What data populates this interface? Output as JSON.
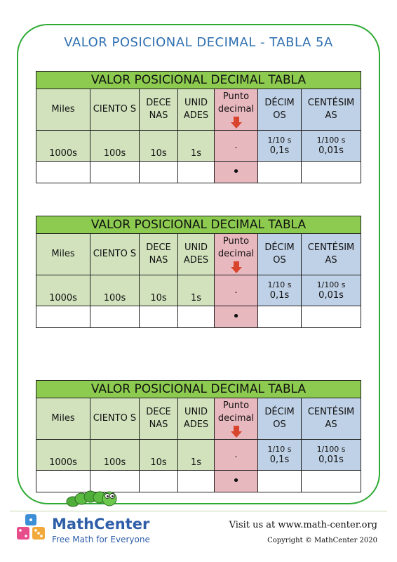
{
  "page_title": "VALOR POSICIONAL DECIMAL - TABLA 5A",
  "tables": [
    {
      "title": "VALOR POSICIONAL DECIMAL TABLA",
      "headers": [
        "Miles",
        "CIENTO S",
        "DECE NAS",
        "UNID ADES",
        "Punto decimal",
        "DÉCIM OS",
        "CENTÉSIM AS"
      ],
      "values": [
        "1000s",
        "100s",
        "10s",
        "1s",
        ".",
        "0,1s",
        "0,01s"
      ],
      "fractions": [
        "1/10 s",
        "1/100 s"
      ],
      "empty_dot": "•"
    },
    {
      "title": "VALOR POSICIONAL DECIMAL TABLA",
      "headers": [
        "Miles",
        "CIENTO S",
        "DECE NAS",
        "UNID ADES",
        "Punto decimal",
        "DÉCIM OS",
        "CENTÉSIM AS"
      ],
      "values": [
        "1000s",
        "100s",
        "10s",
        "1s",
        ".",
        "0,1s",
        "0,01s"
      ],
      "fractions": [
        "1/10 s",
        "1/100 s"
      ],
      "empty_dot": "•"
    },
    {
      "title": "VALOR POSICIONAL DECIMAL TABLA",
      "headers": [
        "Miles",
        "CIENTO S",
        "DECE NAS",
        "UNID ADES",
        "Punto decimal",
        "DÉCIM OS",
        "CENTÉSIM AS"
      ],
      "values": [
        "1000s",
        "100s",
        "10s",
        "1s",
        ".",
        "0,1s",
        "0,01s"
      ],
      "fractions": [
        "1/10 s",
        "1/100 s"
      ],
      "empty_dot": "•"
    }
  ],
  "footer": {
    "brand": "MathCenter",
    "tagline": "Free Math for Everyone",
    "visit": "Visit us at www.math-center.org",
    "copyright": "Copyright © MathCenter 2020"
  },
  "colors": {
    "title_blue": "#2f6fb0",
    "frame_green": "#2eaa34",
    "header_green": "#8ccb4f",
    "integer_green": "#d2e2bd",
    "decimal_pink": "#e8b8bf",
    "fraction_blue": "#bfd1e6",
    "arrow_red": "#d9452c"
  }
}
